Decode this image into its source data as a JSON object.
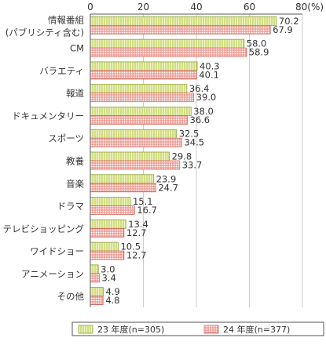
{
  "chart_data": {
    "type": "bar",
    "orientation": "horizontal",
    "categories": [
      [
        "情報番組",
        "(パブリシティ含む)"
      ],
      [
        "CM"
      ],
      [
        "バラエティ"
      ],
      [
        "報道"
      ],
      [
        "ドキュメンタリー"
      ],
      [
        "スポーツ"
      ],
      [
        "教養"
      ],
      [
        "音楽"
      ],
      [
        "ドラマ"
      ],
      [
        "テレビショッピング"
      ],
      [
        "ワイドショー"
      ],
      [
        "アニメーション"
      ],
      [
        "その他"
      ]
    ],
    "series": [
      {
        "name": "23 年度(n=305)",
        "color": "#d4e27a",
        "pattern": "vertical-lines",
        "values": [
          70.2,
          58.0,
          40.3,
          36.4,
          38.0,
          32.5,
          29.8,
          23.9,
          15.1,
          13.4,
          10.5,
          3.0,
          4.9
        ],
        "labels": [
          "70.2",
          "58.0",
          "40.3",
          "36.4",
          "38.0",
          "32.5",
          "29.8",
          "23.9",
          "15.1",
          "13.4",
          "10.5",
          "3.0",
          "4.9"
        ]
      },
      {
        "name": "24 年度(n=377)",
        "color": "#f4b8b0",
        "pattern": "grid",
        "values": [
          67.9,
          58.9,
          40.1,
          39.0,
          36.6,
          34.5,
          33.7,
          24.7,
          16.7,
          12.7,
          12.7,
          3.4,
          4.8
        ],
        "labels": [
          "67.9",
          "58.9",
          "40.1",
          "39.0",
          "36.6",
          "34.5",
          "33.7",
          "24.7",
          "16.7",
          "12.7",
          "12.7",
          "3.4",
          "4.8"
        ]
      }
    ],
    "x_ticks": [
      "0",
      "20",
      "40",
      "60",
      "80(%)"
    ],
    "x_tick_values": [
      0,
      20,
      40,
      60,
      80
    ],
    "xlim": [
      0,
      80
    ],
    "grid": true,
    "legend_position": "bottom-right"
  }
}
